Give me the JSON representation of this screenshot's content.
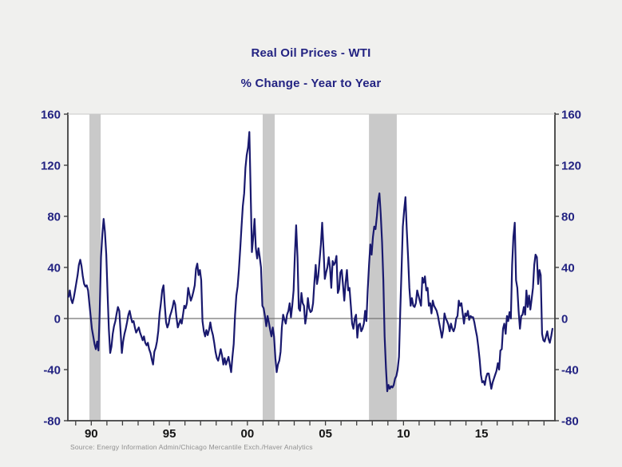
{
  "page": {
    "background": "#f0f0ee"
  },
  "chart_data": {
    "type": "line",
    "title": "Real Oil Prices - WTI",
    "subtitle": "% Change - Year to Year",
    "source": "Source: Energy Information Admin/Chicago Mercantile Exch./Haver Analytics",
    "title_color": "#232382",
    "line_color": "#19196e",
    "band_color": "#c9c9c9",
    "zero_line_color": "#737373",
    "axis_color": "#3f3f3f",
    "plot_background": "#ffffff",
    "ylim": [
      -80,
      160
    ],
    "yticks": [
      160,
      120,
      80,
      40,
      0,
      -40,
      -80
    ],
    "xlim": [
      1988.5,
      2019.7
    ],
    "xticks_major": [
      {
        "year": 1990,
        "label": "90"
      },
      {
        "year": 1995,
        "label": "95"
      },
      {
        "year": 2000,
        "label": "00"
      },
      {
        "year": 2005,
        "label": "05"
      },
      {
        "year": 2010,
        "label": "10"
      },
      {
        "year": 2015,
        "label": "15"
      }
    ],
    "xticks_minor_every_years": 1,
    "grid": false,
    "legend_position": "none",
    "zero_line": true,
    "recession_bands": [
      [
        1989.88,
        1990.6
      ],
      [
        2000.98,
        2001.75
      ],
      [
        2007.79,
        2009.57
      ]
    ],
    "series": [
      {
        "name": "Real WTI oil price, % change year over year",
        "frequency": "monthly",
        "start": {
          "year": 1988,
          "month": 7
        },
        "values": [
          17,
          22,
          15,
          12,
          16,
          22,
          28,
          34,
          42,
          46,
          41,
          33,
          27,
          25,
          26,
          22,
          12,
          2,
          -8,
          -14,
          -20,
          -24,
          -18,
          -25,
          6,
          48,
          66,
          78,
          68,
          50,
          20,
          -8,
          -27,
          -22,
          -12,
          -6,
          -2,
          4,
          9,
          6,
          -10,
          -27,
          -18,
          -12,
          -8,
          -3,
          3,
          6,
          1,
          -3,
          -2,
          -7,
          -11,
          -9,
          -7,
          -11,
          -14,
          -17,
          -14,
          -19,
          -21,
          -19,
          -24,
          -27,
          -32,
          -36,
          -26,
          -23,
          -18,
          -10,
          4,
          12,
          22,
          26,
          10,
          -3,
          -7,
          -4,
          2,
          5,
          9,
          14,
          11,
          1,
          -7,
          -4,
          -1,
          -4,
          3,
          10,
          8,
          12,
          24,
          19,
          14,
          17,
          21,
          26,
          39,
          43,
          34,
          38,
          30,
          -2,
          -10,
          -14,
          -9,
          -13,
          -9,
          -3,
          -9,
          -13,
          -19,
          -26,
          -31,
          -33,
          -29,
          -24,
          -29,
          -36,
          -31,
          -36,
          -33,
          -30,
          -36,
          -42,
          -30,
          -20,
          3,
          18,
          25,
          38,
          55,
          72,
          88,
          98,
          118,
          128,
          134,
          146,
          100,
          52,
          64,
          78,
          55,
          47,
          55,
          48,
          40,
          10,
          8,
          2,
          -6,
          2,
          -3,
          -9,
          -14,
          -7,
          -14,
          -31,
          -42,
          -36,
          -33,
          -26,
          -7,
          3,
          -1,
          -4,
          3,
          6,
          12,
          1,
          10,
          22,
          50,
          73,
          48,
          8,
          6,
          20,
          12,
          10,
          -4,
          3,
          16,
          8,
          5,
          6,
          12,
          28,
          42,
          27,
          33,
          46,
          58,
          75,
          54,
          31,
          36,
          40,
          48,
          40,
          24,
          45,
          42,
          44,
          49,
          20,
          23,
          36,
          38,
          26,
          14,
          28,
          38,
          22,
          24,
          10,
          -4,
          -8,
          0,
          3,
          -15,
          -5,
          -4,
          -10,
          -8,
          -4,
          6,
          -2,
          22,
          42,
          58,
          50,
          64,
          72,
          70,
          80,
          92,
          98,
          82,
          60,
          30,
          -14,
          -39,
          -57,
          -52,
          -55,
          -53,
          -54,
          -52,
          -47,
          -45,
          -40,
          -30,
          6,
          38,
          72,
          85,
          95,
          70,
          48,
          24,
          10,
          16,
          10,
          9,
          12,
          22,
          18,
          14,
          10,
          32,
          28,
          33,
          22,
          24,
          10,
          12,
          4,
          14,
          10,
          8,
          6,
          2,
          -4,
          -9,
          -15,
          -9,
          4,
          0,
          -2,
          -5,
          -10,
          -4,
          -8,
          -10,
          -7,
          0,
          2,
          14,
          10,
          12,
          4,
          -4,
          4,
          2,
          6,
          -1,
          2,
          1,
          1,
          -3,
          -9,
          -14,
          -22,
          -32,
          -44,
          -50,
          -49,
          -52,
          -46,
          -43,
          -43,
          -49,
          -55,
          -50,
          -47,
          -44,
          -41,
          -35,
          -40,
          -25,
          -24,
          -8,
          -4,
          -12,
          2,
          -2,
          5,
          0,
          42,
          64,
          75,
          30,
          24,
          6,
          -8,
          2,
          3,
          9,
          3,
          22,
          9,
          18,
          7,
          15,
          24,
          42,
          50,
          48,
          27,
          38,
          34,
          -12,
          -17,
          -18,
          -14,
          -10,
          -16,
          -19,
          -14,
          -8
        ]
      }
    ]
  }
}
